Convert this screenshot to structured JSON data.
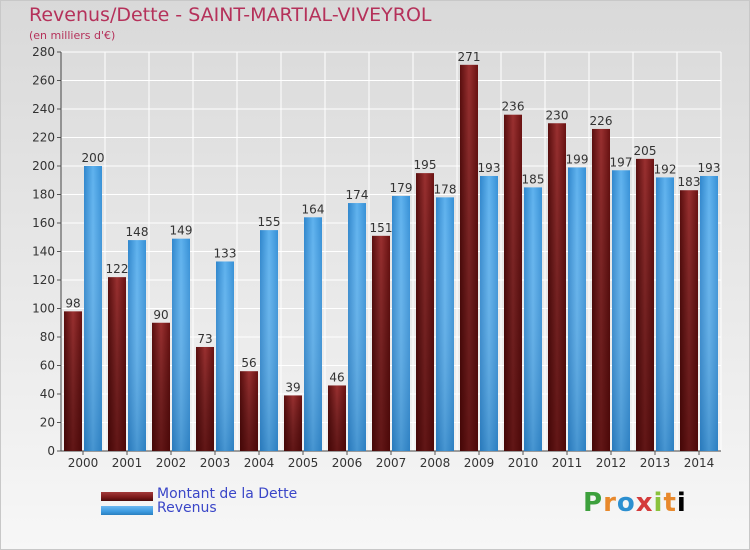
{
  "title": "Revenus/Dette - SAINT-MARTIAL-VIVEYROL",
  "subtitle": "(en milliers d'€)",
  "logo_text": "Proxiti",
  "colors": {
    "debt": "#7a1a1a",
    "revenue": "#3d9be0",
    "title": "#b5315a",
    "legend_text": "#3a46c8"
  },
  "chart_data": {
    "type": "bar",
    "title": "Revenus/Dette - SAINT-MARTIAL-VIVEYROL",
    "ylabel": "(en milliers d'€)",
    "xlabel": "",
    "categories": [
      "2000",
      "2001",
      "2002",
      "2003",
      "2004",
      "2005",
      "2006",
      "2007",
      "2008",
      "2009",
      "2010",
      "2011",
      "2012",
      "2013",
      "2014"
    ],
    "series": [
      {
        "name": "Montant de la Dette",
        "values": [
          98,
          122,
          90,
          73,
          56,
          39,
          46,
          151,
          195,
          271,
          236,
          230,
          226,
          205,
          183
        ]
      },
      {
        "name": "Revenus",
        "values": [
          200,
          148,
          149,
          133,
          155,
          164,
          174,
          179,
          178,
          193,
          185,
          199,
          197,
          192,
          193
        ]
      }
    ],
    "ylim": [
      0,
      280
    ],
    "yticks": [
      0,
      20,
      40,
      60,
      80,
      100,
      120,
      140,
      160,
      180,
      200,
      220,
      240,
      260,
      280
    ],
    "grid": true,
    "legend_position": "bottom-left"
  }
}
